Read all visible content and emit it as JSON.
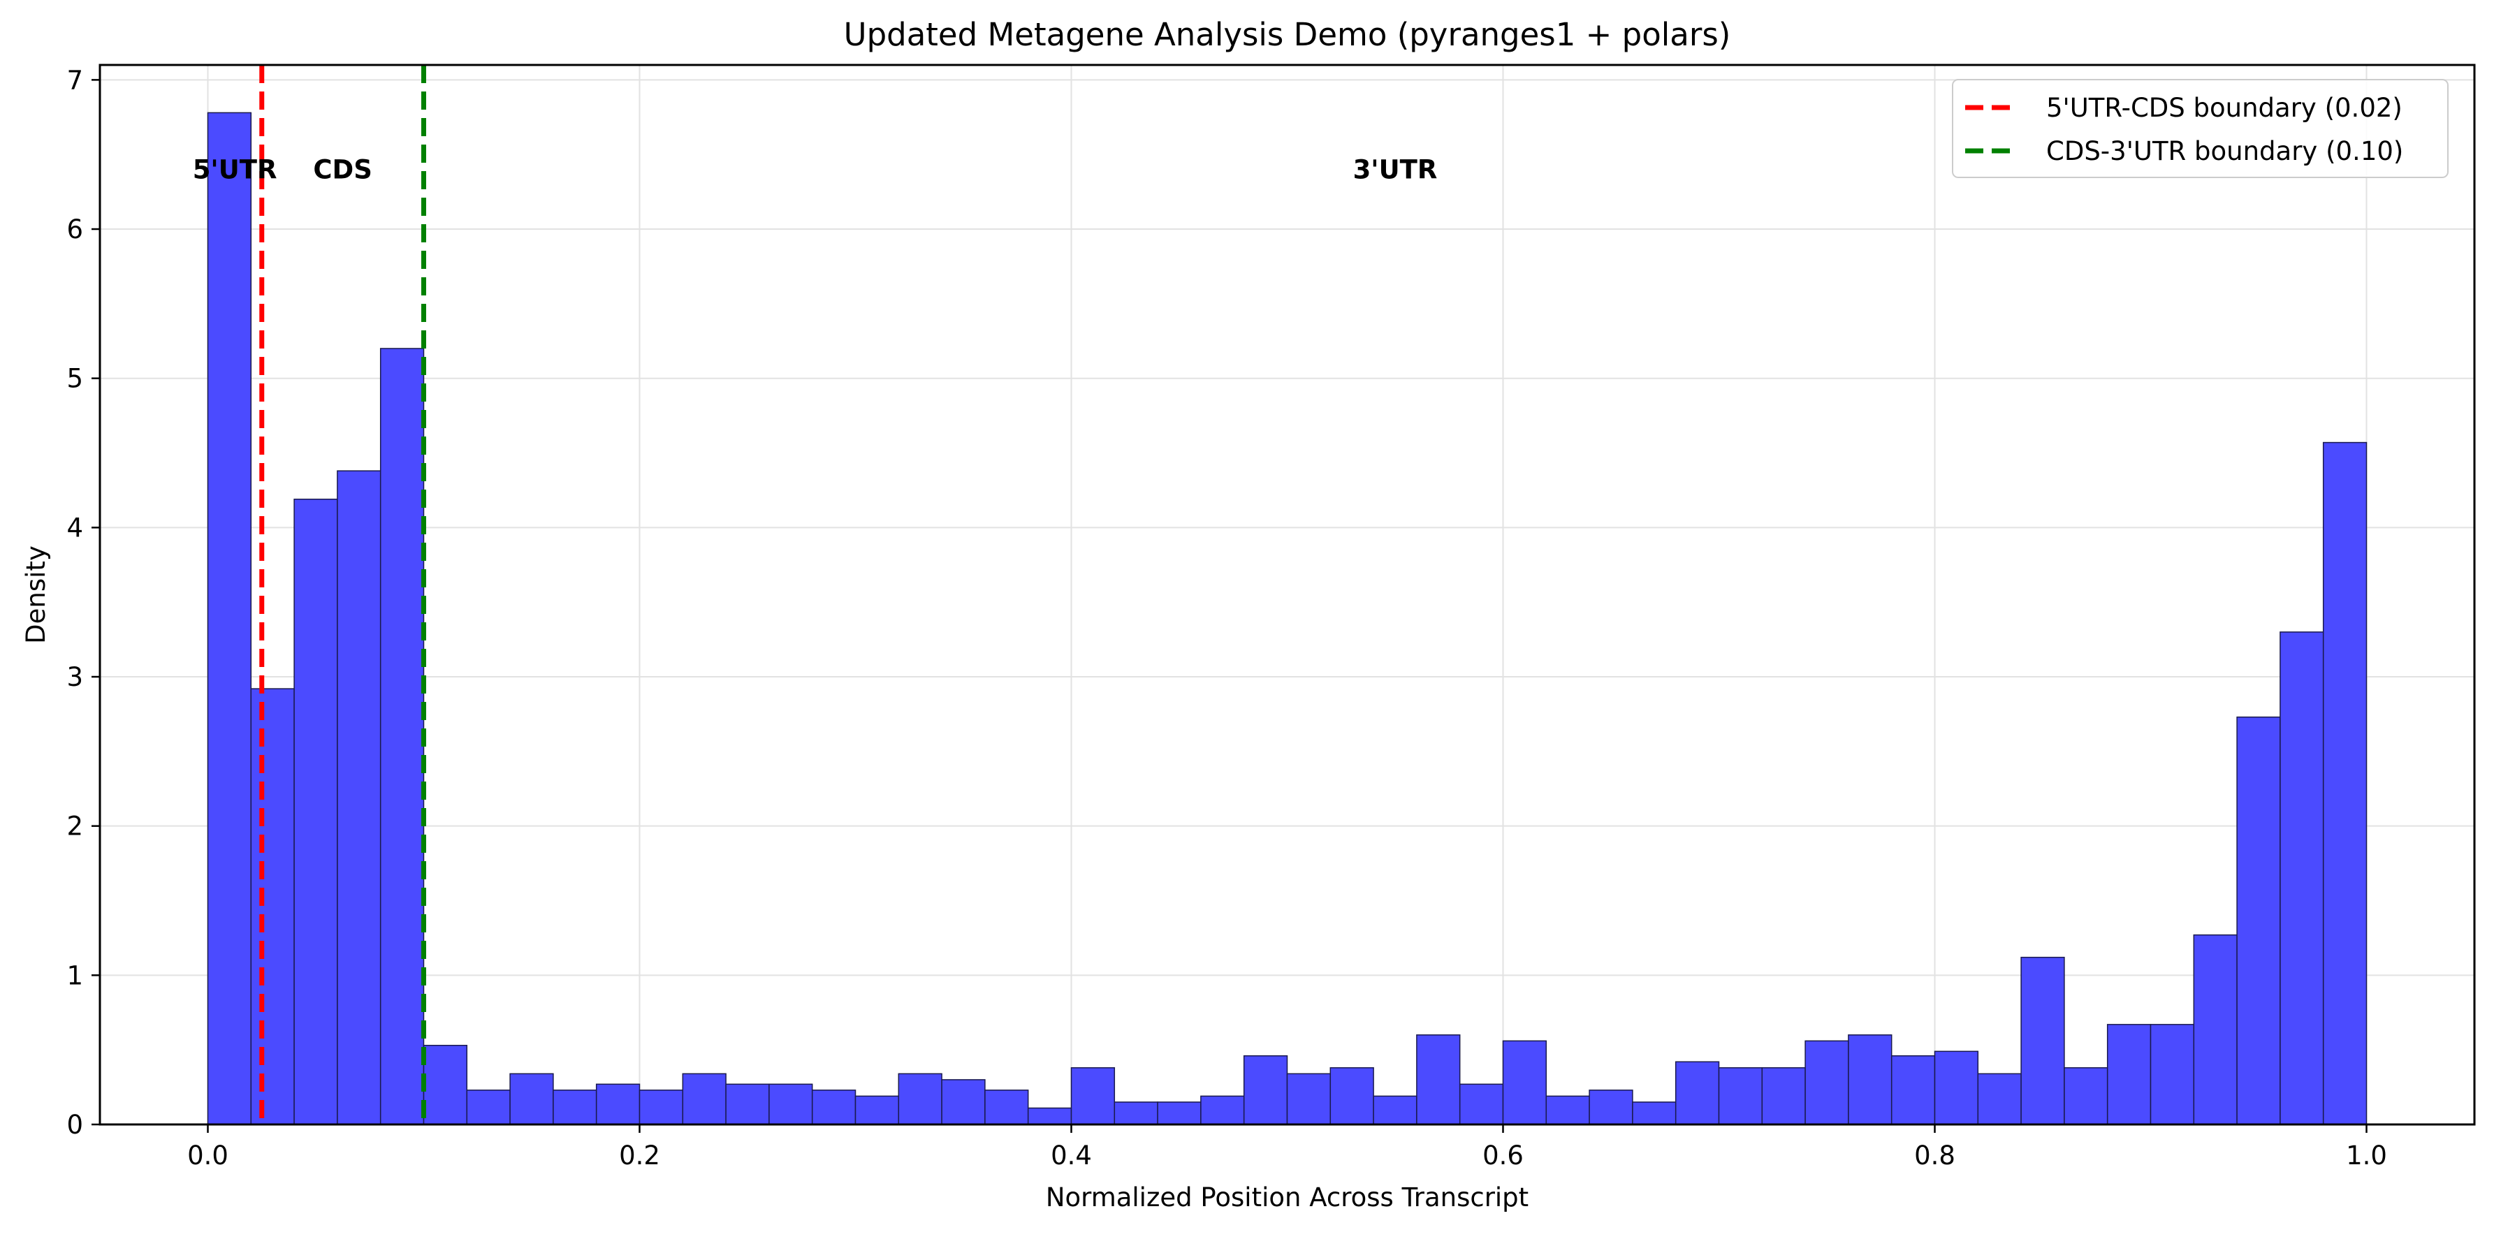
{
  "chart_data": {
    "type": "bar",
    "title": "Updated Metagene Analysis Demo (pyranges1 + polars)",
    "xlabel": "Normalized Position Across Transcript",
    "ylabel": "Density",
    "xlim": [
      -0.05,
      1.05
    ],
    "ylim": [
      0,
      7.1
    ],
    "xticks": [
      0.0,
      0.2,
      0.4,
      0.6,
      0.8,
      1.0
    ],
    "xtick_labels": [
      "0.0",
      "0.2",
      "0.4",
      "0.6",
      "0.8",
      "1.0"
    ],
    "yticks": [
      0,
      1,
      2,
      3,
      4,
      5,
      6,
      7
    ],
    "ytick_labels": [
      "0",
      "1",
      "2",
      "3",
      "4",
      "5",
      "6",
      "7"
    ],
    "grid": true,
    "bin_edges": [
      0.0,
      0.02,
      0.04,
      0.06,
      0.08,
      0.1,
      0.12,
      0.14,
      0.16,
      0.18,
      0.2,
      0.22,
      0.24,
      0.26,
      0.28,
      0.3,
      0.32,
      0.34,
      0.36,
      0.38,
      0.4,
      0.42,
      0.44,
      0.46,
      0.48,
      0.5,
      0.52,
      0.54,
      0.56,
      0.58,
      0.6,
      0.62,
      0.64,
      0.66,
      0.68,
      0.7,
      0.72,
      0.74,
      0.76,
      0.78,
      0.8,
      0.82,
      0.84,
      0.86,
      0.88,
      0.9,
      0.92,
      0.94,
      0.96,
      0.98,
      1.0
    ],
    "values": [
      6.78,
      2.92,
      4.19,
      4.38,
      5.2,
      0.53,
      0.23,
      0.34,
      0.23,
      0.27,
      0.23,
      0.34,
      0.27,
      0.27,
      0.23,
      0.19,
      0.34,
      0.3,
      0.23,
      0.11,
      0.38,
      0.15,
      0.15,
      0.19,
      0.46,
      0.34,
      0.38,
      0.19,
      0.6,
      0.27,
      0.56,
      0.19,
      0.23,
      0.15,
      0.42,
      0.38,
      0.38,
      0.56,
      0.6,
      0.46,
      0.49,
      0.34,
      1.12,
      0.38,
      0.67,
      0.67,
      1.27,
      2.73,
      3.3,
      4.57
    ],
    "bar_color": "#4b4bff",
    "bar_edge_color": "#1a1a4d",
    "vlines": [
      {
        "x": 0.025,
        "color": "#ff0000",
        "style": "dashed",
        "label": "5'UTR-CDS boundary (0.02)"
      },
      {
        "x": 0.1,
        "color": "#008000",
        "style": "dashed",
        "label": "CDS-3'UTR boundary (0.10)"
      }
    ],
    "legend_position": "top-right",
    "annotations": [
      {
        "text": "5'UTR",
        "x": 0.0125,
        "y": 6.4
      },
      {
        "text": "CDS",
        "x": 0.0625,
        "y": 6.4
      },
      {
        "text": "3'UTR",
        "x": 0.55,
        "y": 6.4
      }
    ]
  }
}
